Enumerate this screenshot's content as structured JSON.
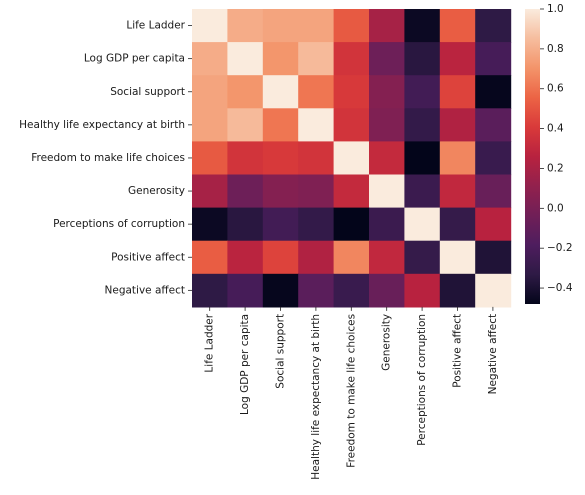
{
  "chart_data": {
    "type": "heatmap",
    "title": "",
    "xlabel": "",
    "ylabel": "",
    "row_labels": [
      "Life Ladder",
      "Log GDP per capita",
      "Social support",
      "Healthy life expectancy at birth",
      "Freedom to make life choices",
      "Generosity",
      "Perceptions of corruption",
      "Positive affect",
      "Negative affect"
    ],
    "col_labels": [
      "Life Ladder",
      "Log GDP per capita",
      "Social support",
      "Healthy life expectancy at birth",
      "Freedom to make life choices",
      "Generosity",
      "Perceptions of corruption",
      "Positive affect",
      "Negative affect"
    ],
    "values": [
      [
        1.0,
        0.79,
        0.76,
        0.76,
        0.52,
        0.19,
        -0.45,
        0.53,
        -0.33
      ],
      [
        0.79,
        1.0,
        0.71,
        0.84,
        0.37,
        -0.05,
        -0.35,
        0.27,
        -0.22
      ],
      [
        0.76,
        0.71,
        1.0,
        0.61,
        0.4,
        0.05,
        -0.24,
        0.44,
        -0.47
      ],
      [
        0.76,
        0.84,
        0.61,
        1.0,
        0.37,
        0.03,
        -0.31,
        0.23,
        -0.13
      ],
      [
        0.52,
        0.37,
        0.4,
        0.37,
        1.0,
        0.31,
        -0.48,
        0.66,
        -0.28
      ],
      [
        0.19,
        -0.05,
        0.05,
        0.03,
        0.31,
        1.0,
        -0.27,
        0.3,
        -0.07
      ],
      [
        -0.45,
        -0.35,
        -0.24,
        -0.31,
        -0.48,
        -0.27,
        1.0,
        -0.3,
        0.26
      ],
      [
        0.53,
        0.27,
        0.44,
        0.23,
        0.66,
        0.3,
        -0.3,
        1.0,
        -0.38
      ],
      [
        -0.33,
        -0.22,
        -0.47,
        -0.13,
        -0.28,
        -0.07,
        0.26,
        -0.38,
        1.0
      ]
    ],
    "colorbar": {
      "colormap": "rocket",
      "vmin": -0.48,
      "vmax": 1.0,
      "ticks": [
        "1.0",
        "0.8",
        "0.6",
        "0.4",
        "0.2",
        "0.0",
        "−0.2",
        "−0.4"
      ]
    }
  }
}
